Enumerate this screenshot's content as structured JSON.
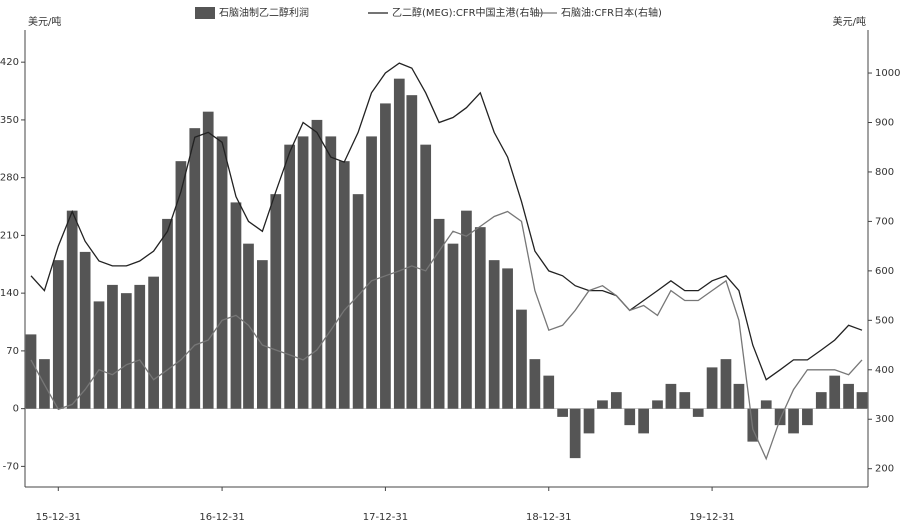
{
  "chart_data": {
    "type": "bar-line",
    "y_label": "美元/吨",
    "y2_label": "美元/吨",
    "x": [
      "15-10-31",
      "15-11-30",
      "15-12-31",
      "16-01-31",
      "16-02-29",
      "16-03-31",
      "16-04-30",
      "16-05-31",
      "16-06-30",
      "16-07-31",
      "16-08-31",
      "16-09-30",
      "16-10-31",
      "16-11-30",
      "16-12-31",
      "17-01-31",
      "17-02-28",
      "17-03-31",
      "17-04-30",
      "17-05-31",
      "17-06-30",
      "17-07-31",
      "17-08-31",
      "17-09-30",
      "17-10-31",
      "17-11-30",
      "17-12-31",
      "18-01-31",
      "18-02-28",
      "18-03-31",
      "18-04-30",
      "18-05-31",
      "18-06-30",
      "18-07-31",
      "18-08-31",
      "18-09-30",
      "18-10-31",
      "18-11-30",
      "18-12-31",
      "19-01-31",
      "19-02-28",
      "19-03-31",
      "19-04-30",
      "19-05-31",
      "19-06-30",
      "19-07-31",
      "19-08-31",
      "19-09-30",
      "19-10-31",
      "19-11-30",
      "19-12-31",
      "20-01-31",
      "20-02-29",
      "20-03-31",
      "20-04-30",
      "20-05-31",
      "20-06-30",
      "20-07-31",
      "20-08-31",
      "20-09-30",
      "20-10-31",
      "20-11-30"
    ],
    "xlim": [
      "15-10-31",
      "20-11-30"
    ],
    "xticks": [
      "15-12-31",
      "16-12-31",
      "17-12-31",
      "18-12-31",
      "19-12-31"
    ],
    "ylim": [
      -95,
      459
    ],
    "yticks": [
      -70,
      0,
      70,
      140,
      210,
      280,
      350,
      420
    ],
    "y2lim": [
      163,
      1087
    ],
    "y2ticks": [
      200,
      300,
      400,
      500,
      600,
      700,
      800,
      900,
      1000
    ],
    "series": [
      {
        "name": "石脑油制乙二醇利润",
        "type": "bar",
        "color": "#555555",
        "values": [
          90,
          60,
          180,
          240,
          190,
          130,
          150,
          140,
          150,
          160,
          230,
          300,
          340,
          360,
          330,
          250,
          200,
          180,
          260,
          320,
          330,
          350,
          330,
          300,
          260,
          330,
          370,
          400,
          380,
          320,
          230,
          200,
          240,
          220,
          180,
          170,
          120,
          60,
          40,
          -10,
          -60,
          -30,
          10,
          20,
          -20,
          -30,
          10,
          30,
          20,
          -10,
          50,
          60,
          30,
          -40,
          10,
          -20,
          -30,
          -20,
          20,
          40,
          30,
          20
        ]
      },
      {
        "name": "乙二醇(MEG):CFR中国主港(右轴)",
        "type": "line",
        "axis": "y2",
        "color": "#222222",
        "values": [
          590,
          560,
          650,
          720,
          660,
          620,
          610,
          610,
          620,
          640,
          680,
          760,
          870,
          880,
          860,
          750,
          700,
          680,
          760,
          840,
          900,
          880,
          830,
          820,
          880,
          960,
          1000,
          1020,
          1010,
          960,
          900,
          910,
          930,
          960,
          880,
          830,
          740,
          640,
          600,
          590,
          570,
          560,
          560,
          550,
          520,
          540,
          560,
          580,
          560,
          560,
          580,
          590,
          560,
          450,
          380,
          400,
          420,
          420,
          440,
          460,
          490,
          480
        ]
      },
      {
        "name": "石脑油:CFR日本(右轴)",
        "type": "line",
        "axis": "y2",
        "color": "#777777",
        "values": [
          420,
          370,
          320,
          330,
          360,
          400,
          390,
          410,
          420,
          380,
          400,
          420,
          450,
          460,
          500,
          510,
          490,
          450,
          440,
          430,
          420,
          440,
          480,
          520,
          550,
          580,
          590,
          600,
          610,
          600,
          640,
          680,
          670,
          690,
          710,
          720,
          700,
          560,
          480,
          490,
          520,
          560,
          570,
          550,
          520,
          530,
          510,
          560,
          540,
          540,
          560,
          580,
          500,
          280,
          220,
          300,
          360,
          400,
          400,
          400,
          390,
          420
        ]
      }
    ]
  }
}
